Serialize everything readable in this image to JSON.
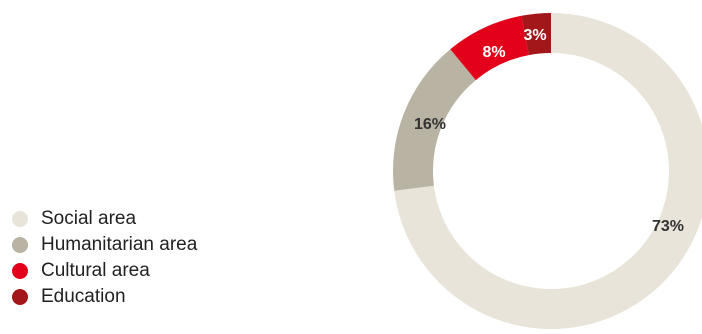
{
  "chart_data": {
    "type": "pie",
    "title": "",
    "categories": [
      "Social area",
      "Humanitarian area",
      "Cultural area",
      "Education"
    ],
    "values": [
      73,
      16,
      8,
      3
    ],
    "labels": [
      "73%",
      "16%",
      "8%",
      "3%"
    ],
    "colors": [
      "#e8e4d9",
      "#b8b3a2",
      "#e2001a",
      "#a3171b"
    ],
    "label_colors": [
      "#333333",
      "#333333",
      "#ffffff",
      "#ffffff"
    ],
    "donut": true,
    "legend_position": "left"
  }
}
